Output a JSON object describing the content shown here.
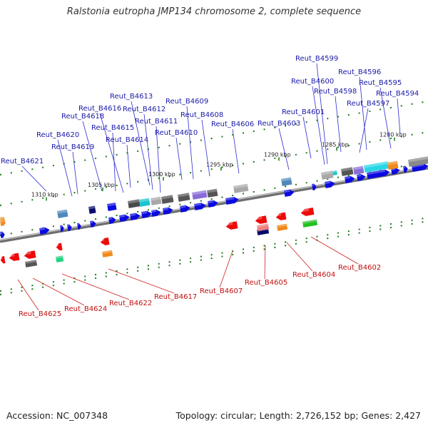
{
  "title": "Ralstonia eutropha JMP134 chromosome 2, complete sequence",
  "footer": {
    "accession": "Accession: NC_007348",
    "summary": "Topology: circular; Length: 2,726,152 bp; Genes: 2,427"
  },
  "colors": {
    "forward_label": "#1a1aa8",
    "reverse_label": "#c01010",
    "forward_arrow": "#0a0ae0",
    "reverse_arrow": "#ee0a0a",
    "backbone": "#909090",
    "tick": "#1f7a1f"
  },
  "scale_ticks": [
    "1310 kbp",
    "1305 kbp",
    "1300 kbp",
    "1295 kbp",
    "1290 kbp",
    "1285 kbp",
    "1280 kbp"
  ],
  "forward_genes": [
    "Reut_B4599",
    "Reut_B4600",
    "Reut_B4596",
    "Reut_B4598",
    "Reut_B4595",
    "Reut_B4594",
    "Reut_B4613",
    "Reut_B4597",
    "Reut_B4612",
    "Reut_B4609",
    "Reut_B4616",
    "Reut_B4601",
    "Reut_B4608",
    "Reut_B4618",
    "Reut_B4611",
    "Reut_B4615",
    "Reut_B4606",
    "Reut_B4603",
    "Reut_B4610",
    "Reut_B4620",
    "Reut_B4614",
    "Reut_B4619",
    "Reut_B4621"
  ],
  "reverse_genes": [
    "Reut_B4602",
    "Reut_B4604",
    "Reut_B4617",
    "Reut_B4607",
    "Reut_B4605",
    "Reut_B4622",
    "Reut_B4624",
    "Reut_B4625"
  ]
}
